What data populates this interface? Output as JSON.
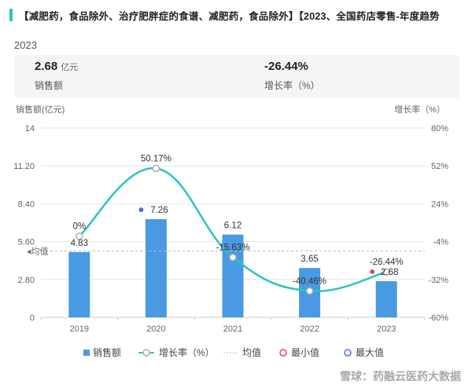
{
  "header": {
    "title": "【减肥药，食品除外、治疗肥胖症的食谱、减肥药，食品除外】【2023、全国药店零售-年度趋势"
  },
  "year_label": "2023",
  "kpis": [
    {
      "value": "2.68",
      "unit": "亿元",
      "label": "销售额"
    },
    {
      "value": "-26.44%",
      "unit": "",
      "label": "增长率（%）"
    }
  ],
  "watermark": "雪球：药融云医药大数据",
  "colors": {
    "bar": "#4a9ae3",
    "line": "#2bc4c0",
    "accent": "#2bc4c0",
    "min_marker": "#ee3d86",
    "max_marker": "#5470d6"
  },
  "chart_data": {
    "type": "bar",
    "categories": [
      "2019",
      "2020",
      "2021",
      "2022",
      "2023"
    ],
    "series": [
      {
        "name": "销售额",
        "type": "bar",
        "axis": "left",
        "values": [
          4.83,
          7.26,
          6.12,
          3.65,
          2.68
        ],
        "labels": [
          "4.83",
          "7.26",
          "6.12",
          "3.65",
          "2.68"
        ]
      },
      {
        "name": "增长率（%）",
        "type": "line",
        "axis": "right",
        "values": [
          0,
          50.17,
          -15.63,
          -40.46,
          -26.44
        ],
        "labels": [
          "0%",
          "50.17%",
          "-15.63%",
          "-40.46%",
          "-26.44%"
        ]
      }
    ],
    "ylabel": "销售额(亿元)",
    "y2label": "增长率（%）",
    "ylim": [
      0,
      14
    ],
    "y2lim": [
      -60,
      80
    ],
    "yticks": [
      "0",
      "2.80",
      "5.60",
      "8.40",
      "11.20",
      "14"
    ],
    "y2ticks": [
      "-60%",
      "-32%",
      "-4%",
      "24%",
      "52%",
      "80%"
    ],
    "mean_label": "均值",
    "mean_value": 4.91,
    "min_index": 4,
    "max_index": 1,
    "legend": [
      "销售额",
      "增长率（%）",
      "均值",
      "最小值",
      "最大值"
    ],
    "legend_position": "bottom",
    "grid": true
  }
}
